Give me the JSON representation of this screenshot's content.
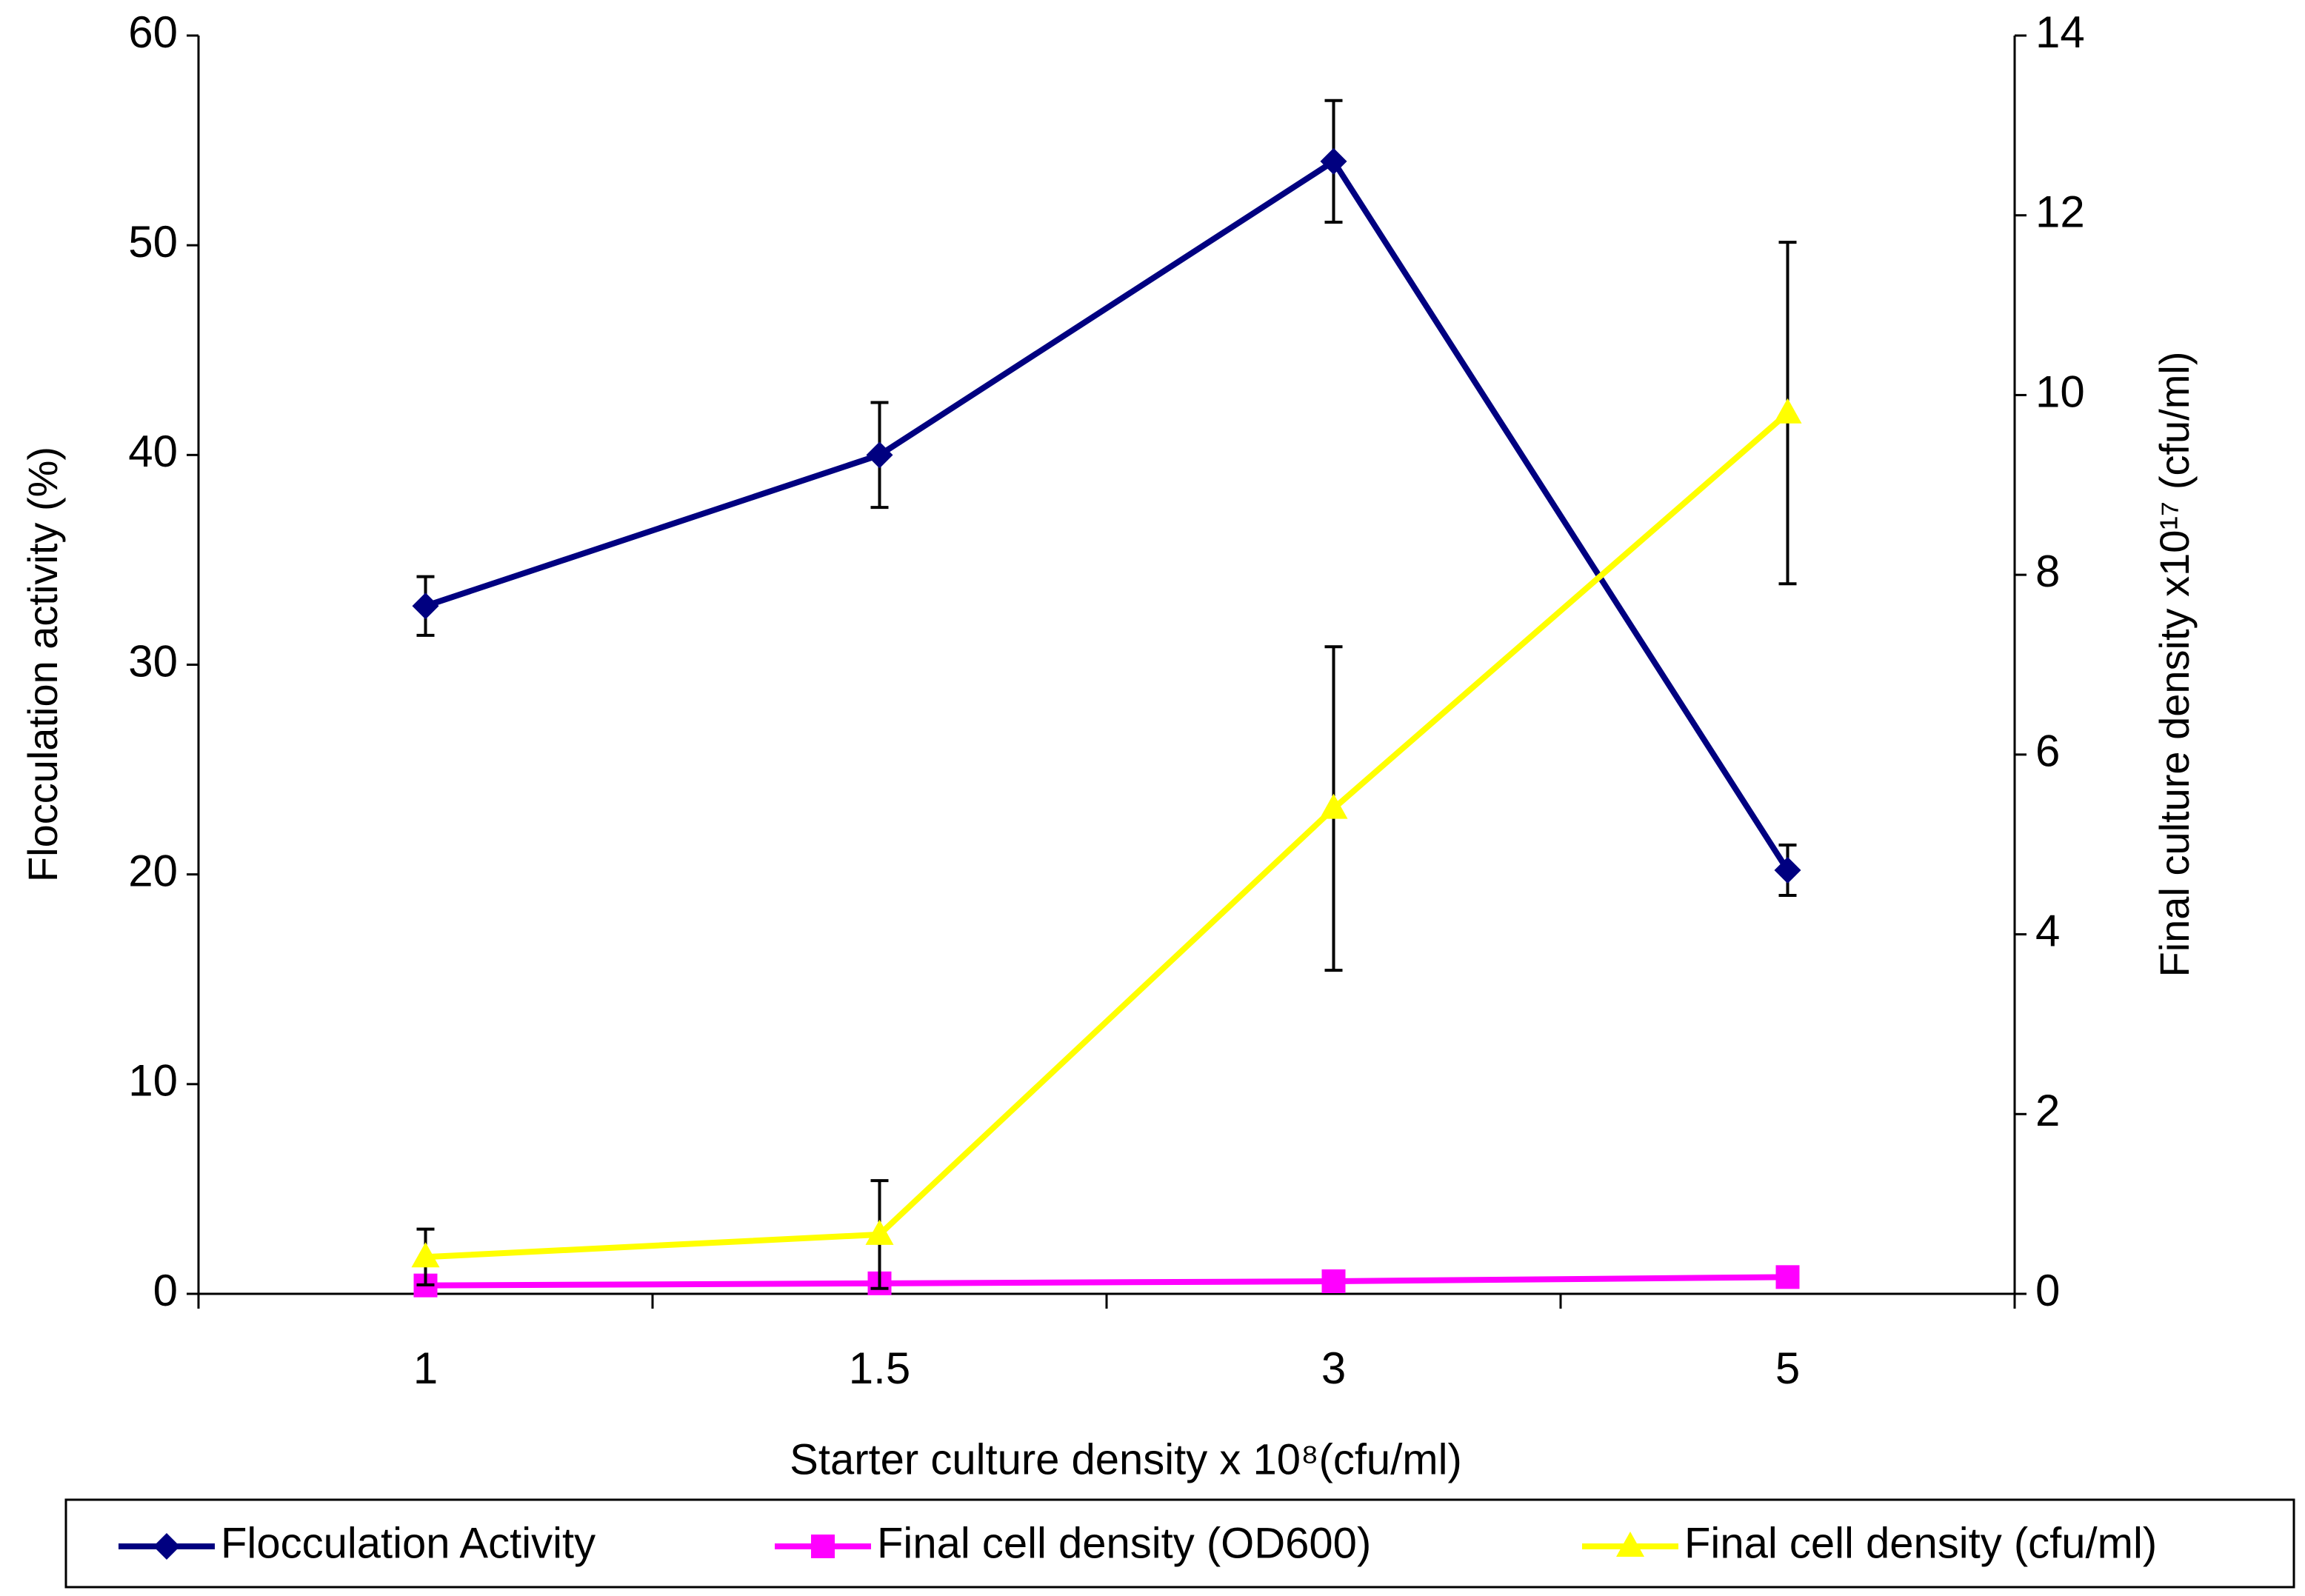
{
  "chart_data": {
    "type": "line",
    "x_label": "Starter culture density x 10⁸(cfu/ml)",
    "y_label": "Flocculation activity (%)",
    "y2_label": "Final culture density x10¹⁷ (cfu/ml)",
    "categories": [
      "1",
      "1.5",
      "3",
      "5"
    ],
    "ylim": [
      0,
      60
    ],
    "yticks": [
      0,
      10,
      20,
      30,
      40,
      50,
      60
    ],
    "y2lim": [
      0,
      14
    ],
    "y2ticks": [
      0,
      2,
      4,
      6,
      8,
      10,
      12,
      14
    ],
    "grid": false,
    "legend": "bottom",
    "series": [
      {
        "name": "Flocculation Activity",
        "color": "#000080",
        "marker": "diamond",
        "values": [
          32.8,
          40,
          54,
          20.2
        ],
        "errors": [
          1.4,
          2.5,
          2.9,
          1.2
        ]
      },
      {
        "name": "Final cell density (OD600)",
        "color": "#ff00ff",
        "marker": "square",
        "values": [
          0.4,
          0.5,
          0.6,
          0.8
        ]
      },
      {
        "name": "Final cell density (cfu/ml)",
        "color": "#ffff00",
        "marker": "triangle",
        "axis": "y2",
        "values": [
          0.41,
          0.66,
          5.4,
          9.8
        ],
        "errors": [
          0.31,
          0.6,
          1.8,
          1.9
        ]
      }
    ]
  }
}
